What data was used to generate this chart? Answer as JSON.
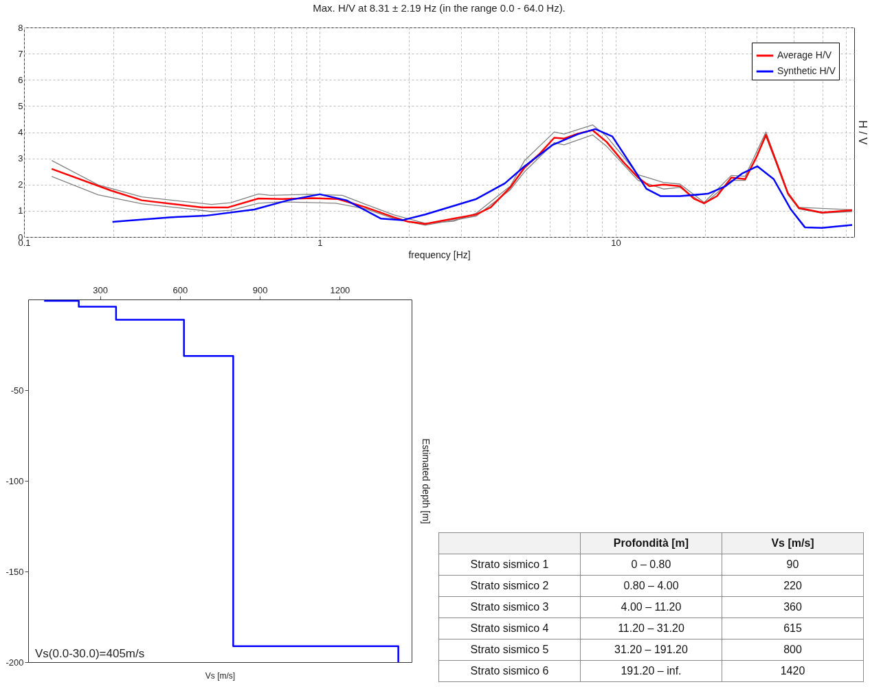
{
  "chart_data": [
    {
      "type": "line",
      "title": "Max. H/V at 8.31 ± 2.19 Hz (in the range 0.0 - 64.0 Hz).",
      "xlabel": "frequency [Hz]",
      "ylabel": "H / V",
      "log": "x",
      "grid": true,
      "legend": "top right",
      "xlim": [
        0.1,
        64
      ],
      "ylim": [
        0,
        8
      ],
      "xticks": [
        0.1,
        {
          "value": 0.2,
          "label": null
        },
        {
          "value": 0.3,
          "label": null
        },
        {
          "value": 0.4,
          "label": null
        },
        {
          "value": 0.5,
          "label": null
        },
        {
          "value": 0.6,
          "label": null
        },
        {
          "value": 0.7,
          "label": null
        },
        {
          "value": 0.8,
          "label": null
        },
        {
          "value": 0.9,
          "label": null
        },
        1,
        {
          "value": 2,
          "label": null
        },
        {
          "value": 3,
          "label": null
        },
        {
          "value": 4,
          "label": null
        },
        {
          "value": 5,
          "label": null
        },
        {
          "value": 6,
          "label": null
        },
        {
          "value": 7,
          "label": null
        },
        {
          "value": 8,
          "label": null
        },
        {
          "value": 9,
          "label": null
        },
        10,
        {
          "value": 20,
          "label": null
        },
        {
          "value": 30,
          "label": null
        },
        {
          "value": 40,
          "label": null
        },
        {
          "value": 50,
          "label": null
        },
        {
          "value": 60,
          "label": null
        }
      ],
      "yticks": [
        0,
        1,
        2,
        3,
        4,
        5,
        6,
        7,
        8
      ],
      "series": [
        {
          "color": "#808080",
          "x": [
            0.124,
            0.178,
            0.25,
            0.43,
            0.5,
            0.62,
            0.68,
            0.92,
            1.19,
            1.43,
            1.78,
            2.27,
            2.83,
            3.38,
            4.4,
            4.92,
            6.2,
            6.69,
            8.35,
            9.32,
            11.9,
            14.5,
            16.5,
            19.9,
            24.6,
            27.4,
            32.2,
            38.2,
            41.6,
            63
          ],
          "values": [
            2.92,
            1.99,
            1.53,
            1.24,
            1.31,
            1.64,
            1.59,
            1.63,
            1.59,
            1.24,
            0.84,
            0.52,
            0.6,
            0.91,
            1.94,
            2.92,
            4.01,
            3.93,
            4.28,
            3.84,
            2.38,
            2.08,
            2.02,
            1.32,
            2.35,
            2.32,
            4.01,
            1.69,
            1.13,
            1.04
          ]
        },
        {
          "color": "#808080",
          "x": [
            0.124,
            0.178,
            0.25,
            0.43,
            0.5,
            0.62,
            0.745,
            1.13,
            1.43,
            1.78,
            2.27,
            3.38,
            4.4,
            4.92,
            6.2,
            6.69,
            8.35,
            9.32,
            11.9,
            14.5,
            16.5,
            19.9,
            24.6,
            27.4,
            32.2,
            38.2,
            41.6,
            49.8,
            63
          ],
          "values": [
            2.31,
            1.61,
            1.27,
            0.97,
            1.02,
            1.29,
            1.34,
            1.29,
            1.07,
            0.7,
            0.45,
            0.8,
            1.8,
            2.49,
            3.6,
            3.52,
            3.9,
            3.46,
            2.16,
            1.83,
            1.89,
            1.26,
            2.16,
            2.16,
            3.84,
            1.62,
            1.07,
            0.91,
            0.97
          ]
        },
        {
          "name": "Average H/V",
          "color": "#ff0000",
          "x": [
            0.124,
            0.197,
            0.25,
            0.4,
            0.49,
            0.62,
            0.745,
            0.947,
            1.15,
            1.43,
            1.78,
            1.98,
            2.27,
            2.83,
            3.38,
            3.78,
            4.4,
            4.92,
            5.49,
            6.2,
            6.69,
            7.47,
            8.35,
            9.32,
            10.6,
            11.9,
            13,
            14.5,
            16.5,
            18.4,
            19.9,
            22,
            24.6,
            27.4,
            30,
            32.2,
            34.9,
            38.2,
            41.6,
            49.8,
            63
          ],
          "values": [
            2.6,
            1.77,
            1.4,
            1.13,
            1.13,
            1.47,
            1.45,
            1.48,
            1.45,
            1.13,
            0.75,
            0.59,
            0.5,
            0.7,
            0.86,
            1.13,
            1.89,
            2.65,
            3.14,
            3.79,
            3.76,
            3.95,
            4.08,
            3.63,
            2.87,
            2.27,
            1.94,
            2,
            1.94,
            1.46,
            1.29,
            1.56,
            2.27,
            2.21,
            3.08,
            3.9,
            2.87,
            1.67,
            1.11,
            0.93,
            1.02
          ]
        },
        {
          "name": "Synthetic H/V",
          "color": "#0000ff",
          "x": [
            0.199,
            0.31,
            0.41,
            0.6,
            0.78,
            1,
            1.23,
            1.61,
            1.9,
            2.27,
            3.38,
            4.22,
            4.92,
            6.13,
            7.47,
            8.53,
            9.74,
            11.1,
            12.7,
            14.2,
            16.5,
            20.5,
            23.5,
            26.8,
            30.1,
            34.2,
            39,
            43.6,
            49.8,
            63
          ],
          "values": [
            0.58,
            0.75,
            0.81,
            1.05,
            1.4,
            1.63,
            1.4,
            0.7,
            0.64,
            0.86,
            1.45,
            2.05,
            2.7,
            3.52,
            3.93,
            4.12,
            3.84,
            2.87,
            1.84,
            1.56,
            1.56,
            1.65,
            1.94,
            2.43,
            2.7,
            2.21,
            1.07,
            0.37,
            0.35,
            0.46
          ]
        }
      ]
    },
    {
      "type": "line",
      "xlabel": "Vs [m/s]",
      "ylabel": "Estimated depth [m]",
      "xlim": [
        30,
        1470
      ],
      "ylim": [
        -200,
        0
      ],
      "xticks": [
        300,
        600,
        900,
        1200
      ],
      "yticks": [
        -200,
        -150,
        -100,
        -50
      ],
      "annotations": [
        "Vs(0.0-30.0)=405m/s"
      ],
      "series": [
        {
          "color": "#0000ff",
          "x": [
            90,
            220,
            220,
            360,
            360,
            615,
            615,
            800,
            800,
            1420,
            1420
          ],
          "values": [
            -0.8,
            -0.8,
            -4,
            -4,
            -11.2,
            -11.2,
            -31.2,
            -31.2,
            -191.2,
            -191.2,
            -200
          ]
        }
      ]
    },
    {
      "type": "other",
      "categories": [
        "Profondità [m]",
        "Vs [m/s]"
      ],
      "y_categories": [
        "Strato sismico 1",
        "Strato sismico 2",
        "Strato sismico 3",
        "Strato sismico 4",
        "Strato sismico 5",
        "Strato sismico 6"
      ],
      "cell_labels": [
        [
          "0 – 0.80",
          "90"
        ],
        [
          "0.80 – 4.00",
          "220"
        ],
        [
          "4.00 – 11.20",
          "360"
        ],
        [
          "11.20 – 31.20",
          "615"
        ],
        [
          "31.20 – 191.20",
          "800"
        ],
        [
          "191.20 – inf.",
          "1420"
        ]
      ]
    }
  ]
}
